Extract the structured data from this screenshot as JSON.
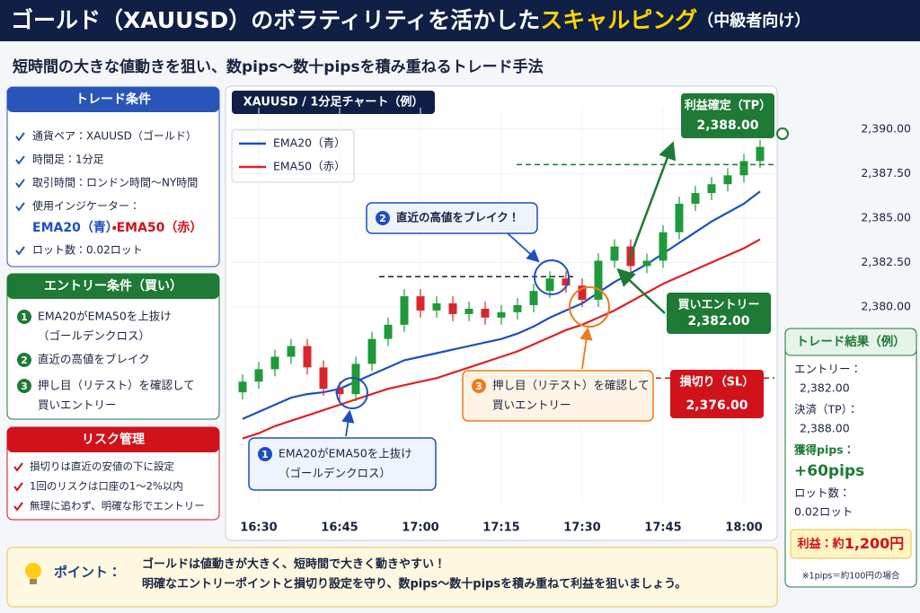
{
  "header": {
    "title_main": "ゴールド（XAUUSD）のボラティリティを活かした",
    "title_highlight": "スキャルピング",
    "title_tag": "（中級者向け）",
    "subtitle": "短時間の大きな値動きを狙い、数pips〜数十pipsを積み重ねるトレード手法"
  },
  "trade_conditions": {
    "title": "トレード条件",
    "items": [
      "通貨ペア：XAUUSD（ゴールド）",
      "時間足：1分足",
      "取引時間：ロンドン時間〜NY時間",
      "使用インジケーター："
    ],
    "ema20": "EMA20（青）",
    "separator": "・",
    "ema50": "EMA50（赤）",
    "lot": "ロット数：0.02ロット"
  },
  "entry_conditions": {
    "title": "エントリー条件（買い）",
    "items": [
      {
        "num": "1",
        "lines": [
          "EMA20がEMA50を上抜け",
          "（ゴールデンクロス）"
        ]
      },
      {
        "num": "2",
        "lines": [
          "直近の高値をブレイク"
        ]
      },
      {
        "num": "3",
        "lines": [
          "押し目（リテスト）を確認して",
          "買いエントリー"
        ]
      }
    ]
  },
  "risk": {
    "title": "リスク管理",
    "items": [
      "損切りは直近の安値の下に設定",
      "1回のリスクは口座の1〜2%以内",
      "無理に追わず、明確な形でエントリー"
    ]
  },
  "result": {
    "title": "トレード結果（例）",
    "entry_label": "エントリー：",
    "entry": "2,382.00",
    "exit_label": "決済（TP）：",
    "exit": "2,388.00",
    "pips_label": "獲得pips：",
    "pips": "+60pips",
    "lot_label": "ロット数：",
    "lot": "0.02ロット",
    "profit_label": "利益：約",
    "profit": "1,200円",
    "note": "※1pips＝約100円の場合"
  },
  "point": {
    "label": "ポイント：",
    "lines": [
      "ゴールドは値動きが大きく、短時間で大きく動きやすい！",
      "明確なエントリーポイントと損切り設定を守り、数pips〜数十pipsを積み重ねて利益を狙いましょう。"
    ]
  },
  "chart_data": {
    "type": "candlestick",
    "title": "XAUUSD / 1分足チャート（例）",
    "x": [
      "16:27",
      "16:30",
      "16:33",
      "16:36",
      "16:39",
      "16:42",
      "16:45",
      "16:48",
      "16:51",
      "16:54",
      "16:57",
      "17:00",
      "17:03",
      "17:06",
      "17:09",
      "17:12",
      "17:15",
      "17:18",
      "17:21",
      "17:24",
      "17:27",
      "17:30",
      "17:33",
      "17:36",
      "17:39",
      "17:42",
      "17:45",
      "17:48",
      "17:51",
      "17:54",
      "17:57",
      "18:00",
      "18:03"
    ],
    "open": [
      2375.2,
      2375.8,
      2376.5,
      2377.2,
      2377.8,
      2376.6,
      2375.4,
      2375.1,
      2376.8,
      2378.2,
      2379.0,
      2380.6,
      2379.8,
      2380.2,
      2379.6,
      2379.9,
      2379.4,
      2379.7,
      2380.1,
      2380.9,
      2381.6,
      2381.2,
      2380.4,
      2382.6,
      2383.4,
      2382.3,
      2382.6,
      2384.2,
      2385.8,
      2386.4,
      2386.9,
      2387.4,
      2388.2
    ],
    "high": [
      2376.2,
      2376.9,
      2377.6,
      2378.2,
      2378.2,
      2377.0,
      2375.8,
      2377.2,
      2378.6,
      2379.4,
      2381.0,
      2381.0,
      2380.6,
      2380.6,
      2380.3,
      2380.3,
      2380.1,
      2380.5,
      2381.3,
      2382.0,
      2382.0,
      2381.6,
      2383.0,
      2383.8,
      2383.8,
      2383.0,
      2384.6,
      2386.2,
      2386.8,
      2387.3,
      2387.8,
      2388.6,
      2389.4
    ],
    "low": [
      2374.8,
      2375.4,
      2376.1,
      2376.8,
      2376.2,
      2375.0,
      2374.7,
      2374.7,
      2376.4,
      2377.8,
      2378.6,
      2379.4,
      2379.4,
      2379.2,
      2379.2,
      2379.0,
      2379.0,
      2379.3,
      2379.7,
      2380.5,
      2380.8,
      2380.0,
      2380.0,
      2382.2,
      2381.9,
      2381.9,
      2382.2,
      2383.8,
      2385.4,
      2386.0,
      2386.5,
      2387.0,
      2387.8
    ],
    "close": [
      2375.8,
      2376.5,
      2377.2,
      2377.8,
      2376.6,
      2375.4,
      2375.1,
      2376.8,
      2378.2,
      2379.0,
      2380.6,
      2379.8,
      2380.2,
      2379.6,
      2379.9,
      2379.4,
      2379.7,
      2380.1,
      2380.9,
      2381.6,
      2381.2,
      2380.4,
      2382.6,
      2383.4,
      2382.3,
      2382.6,
      2384.2,
      2385.8,
      2386.4,
      2386.9,
      2387.4,
      2388.2,
      2389.0
    ],
    "up_color": "#1f9a3a",
    "down_color": "#d8262d",
    "series": [
      {
        "name": "EMA20（青）",
        "color": "#1f4fbf",
        "values": [
          2373.7,
          2374.1,
          2374.5,
          2374.9,
          2375.1,
          2375.2,
          2375.4,
          2375.8,
          2376.2,
          2376.6,
          2377.0,
          2377.2,
          2377.4,
          2377.6,
          2377.8,
          2378.0,
          2378.2,
          2378.5,
          2378.9,
          2379.4,
          2379.8,
          2380.2,
          2380.8,
          2381.4,
          2381.9,
          2382.4,
          2383.0,
          2383.6,
          2384.2,
          2384.8,
          2385.3,
          2385.8,
          2386.5
        ]
      },
      {
        "name": "EMA50（赤）",
        "color": "#e02020",
        "values": [
          2372.6,
          2372.9,
          2373.3,
          2373.6,
          2373.9,
          2374.2,
          2374.5,
          2374.8,
          2375.1,
          2375.4,
          2375.6,
          2375.8,
          2376.0,
          2376.3,
          2376.6,
          2376.9,
          2377.2,
          2377.5,
          2377.9,
          2378.3,
          2378.7,
          2379.0,
          2379.4,
          2379.8,
          2380.3,
          2380.8,
          2381.3,
          2381.7,
          2382.1,
          2382.5,
          2382.9,
          2383.3,
          2383.8
        ]
      }
    ],
    "xlim": [
      "16:25",
      "18:05"
    ],
    "xticks": [
      "16:30",
      "16:45",
      "17:00",
      "17:15",
      "17:30",
      "17:45",
      "18:00"
    ],
    "ylim": [
      2369,
      2391.2
    ],
    "yticks": [
      {
        "value": 2380,
        "label": "2,380.00"
      },
      {
        "value": 2382.5,
        "label": "2,382.50"
      },
      {
        "value": 2385,
        "label": "2,385.00"
      },
      {
        "value": 2387.5,
        "label": "2,387.50"
      },
      {
        "value": 2390,
        "label": "2,390.00"
      }
    ],
    "grid": true,
    "break_level": 2381.7,
    "levels": [
      {
        "label": "利益確定（TP）",
        "value": 2388,
        "value_label": "2,388.00",
        "color": "#1e7a34"
      },
      {
        "label": "買いエントリー",
        "value": 2382,
        "value_label": "2,382.00",
        "color": "#1e7a34"
      },
      {
        "label": "損切り（SL）",
        "value": 2376,
        "value_label": "2,376.00",
        "color": "#d0121b"
      }
    ],
    "annotations": [
      {
        "num": "1",
        "lines": [
          "EMA20がEMA50を上抜け",
          "（ゴールデンクロス）"
        ],
        "color": "#1f4fbf"
      },
      {
        "num": "2",
        "lines": [
          "直近の高値をブレイク！"
        ],
        "color": "#1f4fbf"
      },
      {
        "num": "3",
        "lines": [
          "押し目（リテスト）を確認して",
          "買いエントリー"
        ],
        "color": "#f07b1a"
      }
    ]
  }
}
